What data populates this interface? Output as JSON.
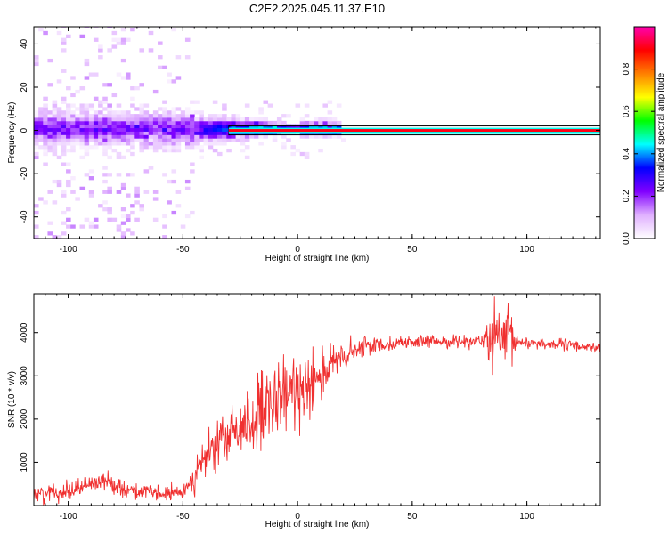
{
  "title": "C2E2.2025.045.11.37.E10",
  "chart_data": [
    {
      "type": "heatmap",
      "name": "spectrogram",
      "xlabel": "Height of straight line (km)",
      "ylabel": "Frequency (Hz)",
      "xlim": [
        -115,
        132
      ],
      "ylim": [
        -50,
        48
      ],
      "xticks": [
        -100,
        -50,
        0,
        50,
        100
      ],
      "yticks": [
        -40,
        -20,
        0,
        20,
        40
      ],
      "carrier": {
        "frequency_hz": 0,
        "amplitude": 0.9,
        "from_km": -30,
        "to_km": 132
      },
      "noise_band": {
        "from_km": -115,
        "to_km": -45,
        "half_width_hz": 48
      },
      "colorbar": {
        "label": "Normalized spectral amplitude",
        "range": [
          0,
          1
        ],
        "ticks": [
          "0.0",
          "0.2",
          "0.4",
          "0.6",
          "0.8"
        ],
        "colors": [
          "#ffffff",
          "#e0b0ff",
          "#8000ff",
          "#0000ff",
          "#00ffff",
          "#00ff00",
          "#ffff00",
          "#ff8000",
          "#ff0000",
          "#ff00b0"
        ]
      }
    },
    {
      "type": "line",
      "name": "snr",
      "xlabel": "Height of straight line (km)",
      "ylabel": "SNR (10 * v/v)",
      "xlim": [
        -115,
        132
      ],
      "ylim": [
        0,
        4900
      ],
      "xticks": [
        -100,
        -50,
        0,
        50,
        100
      ],
      "yticks": [
        1000,
        2000,
        3000,
        4000
      ],
      "color": "#f03030",
      "trend": {
        "x": [
          -115,
          -100,
          -90,
          -85,
          -75,
          -60,
          -50,
          -45,
          -40,
          -35,
          -30,
          -20,
          -15,
          -10,
          -5,
          0,
          5,
          10,
          15,
          20,
          25,
          30,
          35,
          40,
          50,
          60,
          70,
          80,
          88,
          92,
          100,
          110,
          120,
          132
        ],
        "y": [
          250,
          350,
          500,
          600,
          380,
          260,
          300,
          700,
          1100,
          1400,
          1600,
          2000,
          2050,
          2300,
          2500,
          2700,
          2900,
          3050,
          3250,
          3400,
          3550,
          3700,
          3720,
          3750,
          3780,
          3790,
          3800,
          3810,
          3800,
          3790,
          3770,
          3740,
          3700,
          3650
        ]
      },
      "noise_amplitude": {
        "x": [
          -115,
          -80,
          -50,
          -40,
          -30,
          -20,
          -15,
          -10,
          -5,
          0,
          5,
          10,
          15,
          25,
          40,
          80,
          85,
          92,
          96,
          132
        ],
        "y": [
          350,
          350,
          300,
          900,
          1100,
          1300,
          1800,
          1500,
          1400,
          1600,
          1500,
          1200,
          800,
          500,
          250,
          250,
          1300,
          1400,
          250,
          200
        ]
      }
    }
  ]
}
